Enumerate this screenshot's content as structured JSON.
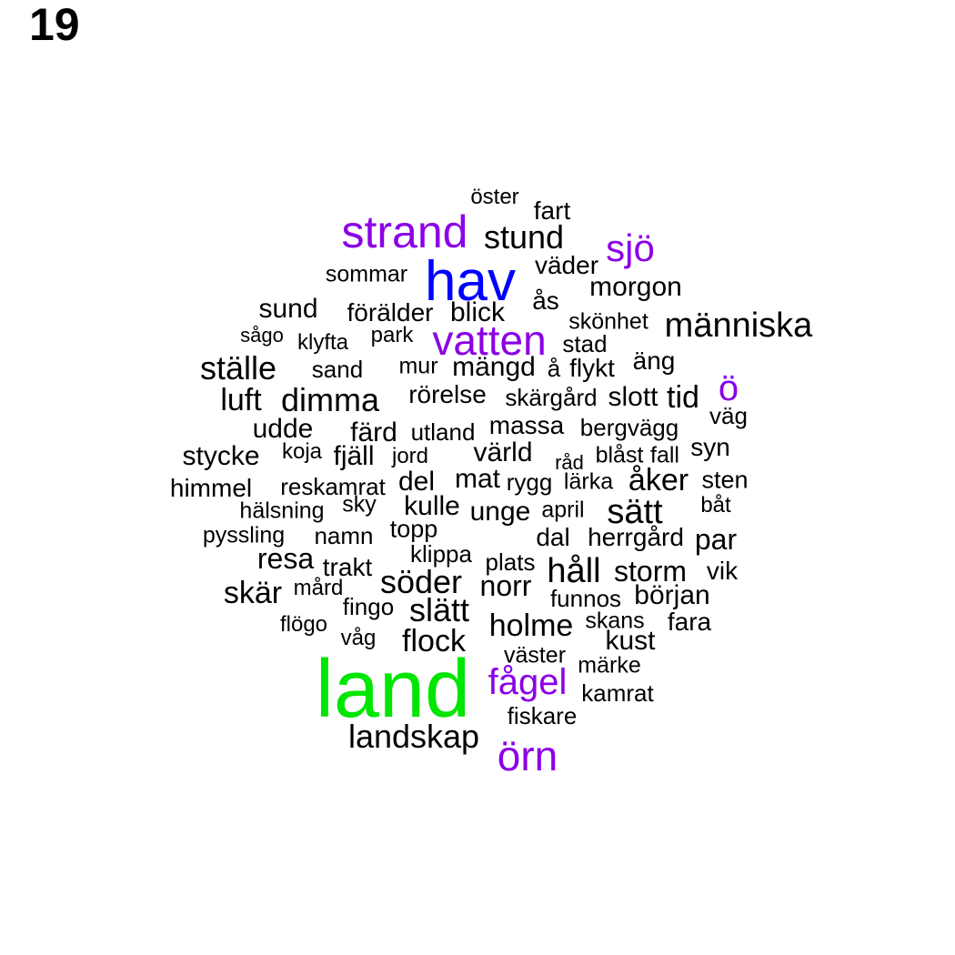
{
  "page_number": "19",
  "colors": {
    "default": "#000000",
    "purple": "#8b00e6",
    "blue": "#0000ff",
    "green": "#00e600"
  },
  "words": [
    {
      "text": "öster",
      "color": "default"
    },
    {
      "text": "fart",
      "color": "default"
    },
    {
      "text": "strand",
      "color": "purple"
    },
    {
      "text": "stund",
      "color": "default"
    },
    {
      "text": "sjö",
      "color": "purple"
    },
    {
      "text": "väder",
      "color": "default"
    },
    {
      "text": "sommar",
      "color": "default"
    },
    {
      "text": "hav",
      "color": "blue"
    },
    {
      "text": "morgon",
      "color": "default"
    },
    {
      "text": "ås",
      "color": "default"
    },
    {
      "text": "sund",
      "color": "default"
    },
    {
      "text": "förälder",
      "color": "default"
    },
    {
      "text": "blick",
      "color": "default"
    },
    {
      "text": "skönhet",
      "color": "default"
    },
    {
      "text": "människa",
      "color": "default"
    },
    {
      "text": "sågo",
      "color": "default"
    },
    {
      "text": "klyfta",
      "color": "default"
    },
    {
      "text": "park",
      "color": "default"
    },
    {
      "text": "vatten",
      "color": "purple"
    },
    {
      "text": "stad",
      "color": "default"
    },
    {
      "text": "ställe",
      "color": "default"
    },
    {
      "text": "sand",
      "color": "default"
    },
    {
      "text": "mur",
      "color": "default"
    },
    {
      "text": "mängd",
      "color": "default"
    },
    {
      "text": "å",
      "color": "default"
    },
    {
      "text": "flykt",
      "color": "default"
    },
    {
      "text": "äng",
      "color": "default"
    },
    {
      "text": "luft",
      "color": "default"
    },
    {
      "text": "dimma",
      "color": "default"
    },
    {
      "text": "rörelse",
      "color": "default"
    },
    {
      "text": "skärgård",
      "color": "default"
    },
    {
      "text": "slott",
      "color": "default"
    },
    {
      "text": "tid",
      "color": "default"
    },
    {
      "text": "ö",
      "color": "purple"
    },
    {
      "text": "väg",
      "color": "default"
    },
    {
      "text": "udde",
      "color": "default"
    },
    {
      "text": "färd",
      "color": "default"
    },
    {
      "text": "utland",
      "color": "default"
    },
    {
      "text": "massa",
      "color": "default"
    },
    {
      "text": "bergvägg",
      "color": "default"
    },
    {
      "text": "stycke",
      "color": "default"
    },
    {
      "text": "koja",
      "color": "default"
    },
    {
      "text": "fjäll",
      "color": "default"
    },
    {
      "text": "jord",
      "color": "default"
    },
    {
      "text": "värld",
      "color": "default"
    },
    {
      "text": "råd",
      "color": "default"
    },
    {
      "text": "blåst",
      "color": "default"
    },
    {
      "text": "fall",
      "color": "default"
    },
    {
      "text": "syn",
      "color": "default"
    },
    {
      "text": "himmel",
      "color": "default"
    },
    {
      "text": "reskamrat",
      "color": "default"
    },
    {
      "text": "del",
      "color": "default"
    },
    {
      "text": "mat",
      "color": "default"
    },
    {
      "text": "rygg",
      "color": "default"
    },
    {
      "text": "lärka",
      "color": "default"
    },
    {
      "text": "åker",
      "color": "default"
    },
    {
      "text": "sten",
      "color": "default"
    },
    {
      "text": "hälsning",
      "color": "default"
    },
    {
      "text": "sky",
      "color": "default"
    },
    {
      "text": "kulle",
      "color": "default"
    },
    {
      "text": "unge",
      "color": "default"
    },
    {
      "text": "april",
      "color": "default"
    },
    {
      "text": "sätt",
      "color": "default"
    },
    {
      "text": "båt",
      "color": "default"
    },
    {
      "text": "pyssling",
      "color": "default"
    },
    {
      "text": "namn",
      "color": "default"
    },
    {
      "text": "topp",
      "color": "default"
    },
    {
      "text": "dal",
      "color": "default"
    },
    {
      "text": "herrgård",
      "color": "default"
    },
    {
      "text": "par",
      "color": "default"
    },
    {
      "text": "resa",
      "color": "default"
    },
    {
      "text": "klippa",
      "color": "default"
    },
    {
      "text": "trakt",
      "color": "default"
    },
    {
      "text": "plats",
      "color": "default"
    },
    {
      "text": "håll",
      "color": "default"
    },
    {
      "text": "storm",
      "color": "default"
    },
    {
      "text": "vik",
      "color": "default"
    },
    {
      "text": "skär",
      "color": "default"
    },
    {
      "text": "mård",
      "color": "default"
    },
    {
      "text": "söder",
      "color": "default"
    },
    {
      "text": "norr",
      "color": "default"
    },
    {
      "text": "funnos",
      "color": "default"
    },
    {
      "text": "början",
      "color": "default"
    },
    {
      "text": "fingo",
      "color": "default"
    },
    {
      "text": "slätt",
      "color": "default"
    },
    {
      "text": "flögo",
      "color": "default"
    },
    {
      "text": "holme",
      "color": "default"
    },
    {
      "text": "skans",
      "color": "default"
    },
    {
      "text": "fara",
      "color": "default"
    },
    {
      "text": "våg",
      "color": "default"
    },
    {
      "text": "flock",
      "color": "default"
    },
    {
      "text": "kust",
      "color": "default"
    },
    {
      "text": "väster",
      "color": "default"
    },
    {
      "text": "land",
      "color": "green"
    },
    {
      "text": "märke",
      "color": "default"
    },
    {
      "text": "fågel",
      "color": "purple"
    },
    {
      "text": "kamrat",
      "color": "default"
    },
    {
      "text": "fiskare",
      "color": "default"
    },
    {
      "text": "landskap",
      "color": "default"
    },
    {
      "text": "örn",
      "color": "purple"
    }
  ]
}
